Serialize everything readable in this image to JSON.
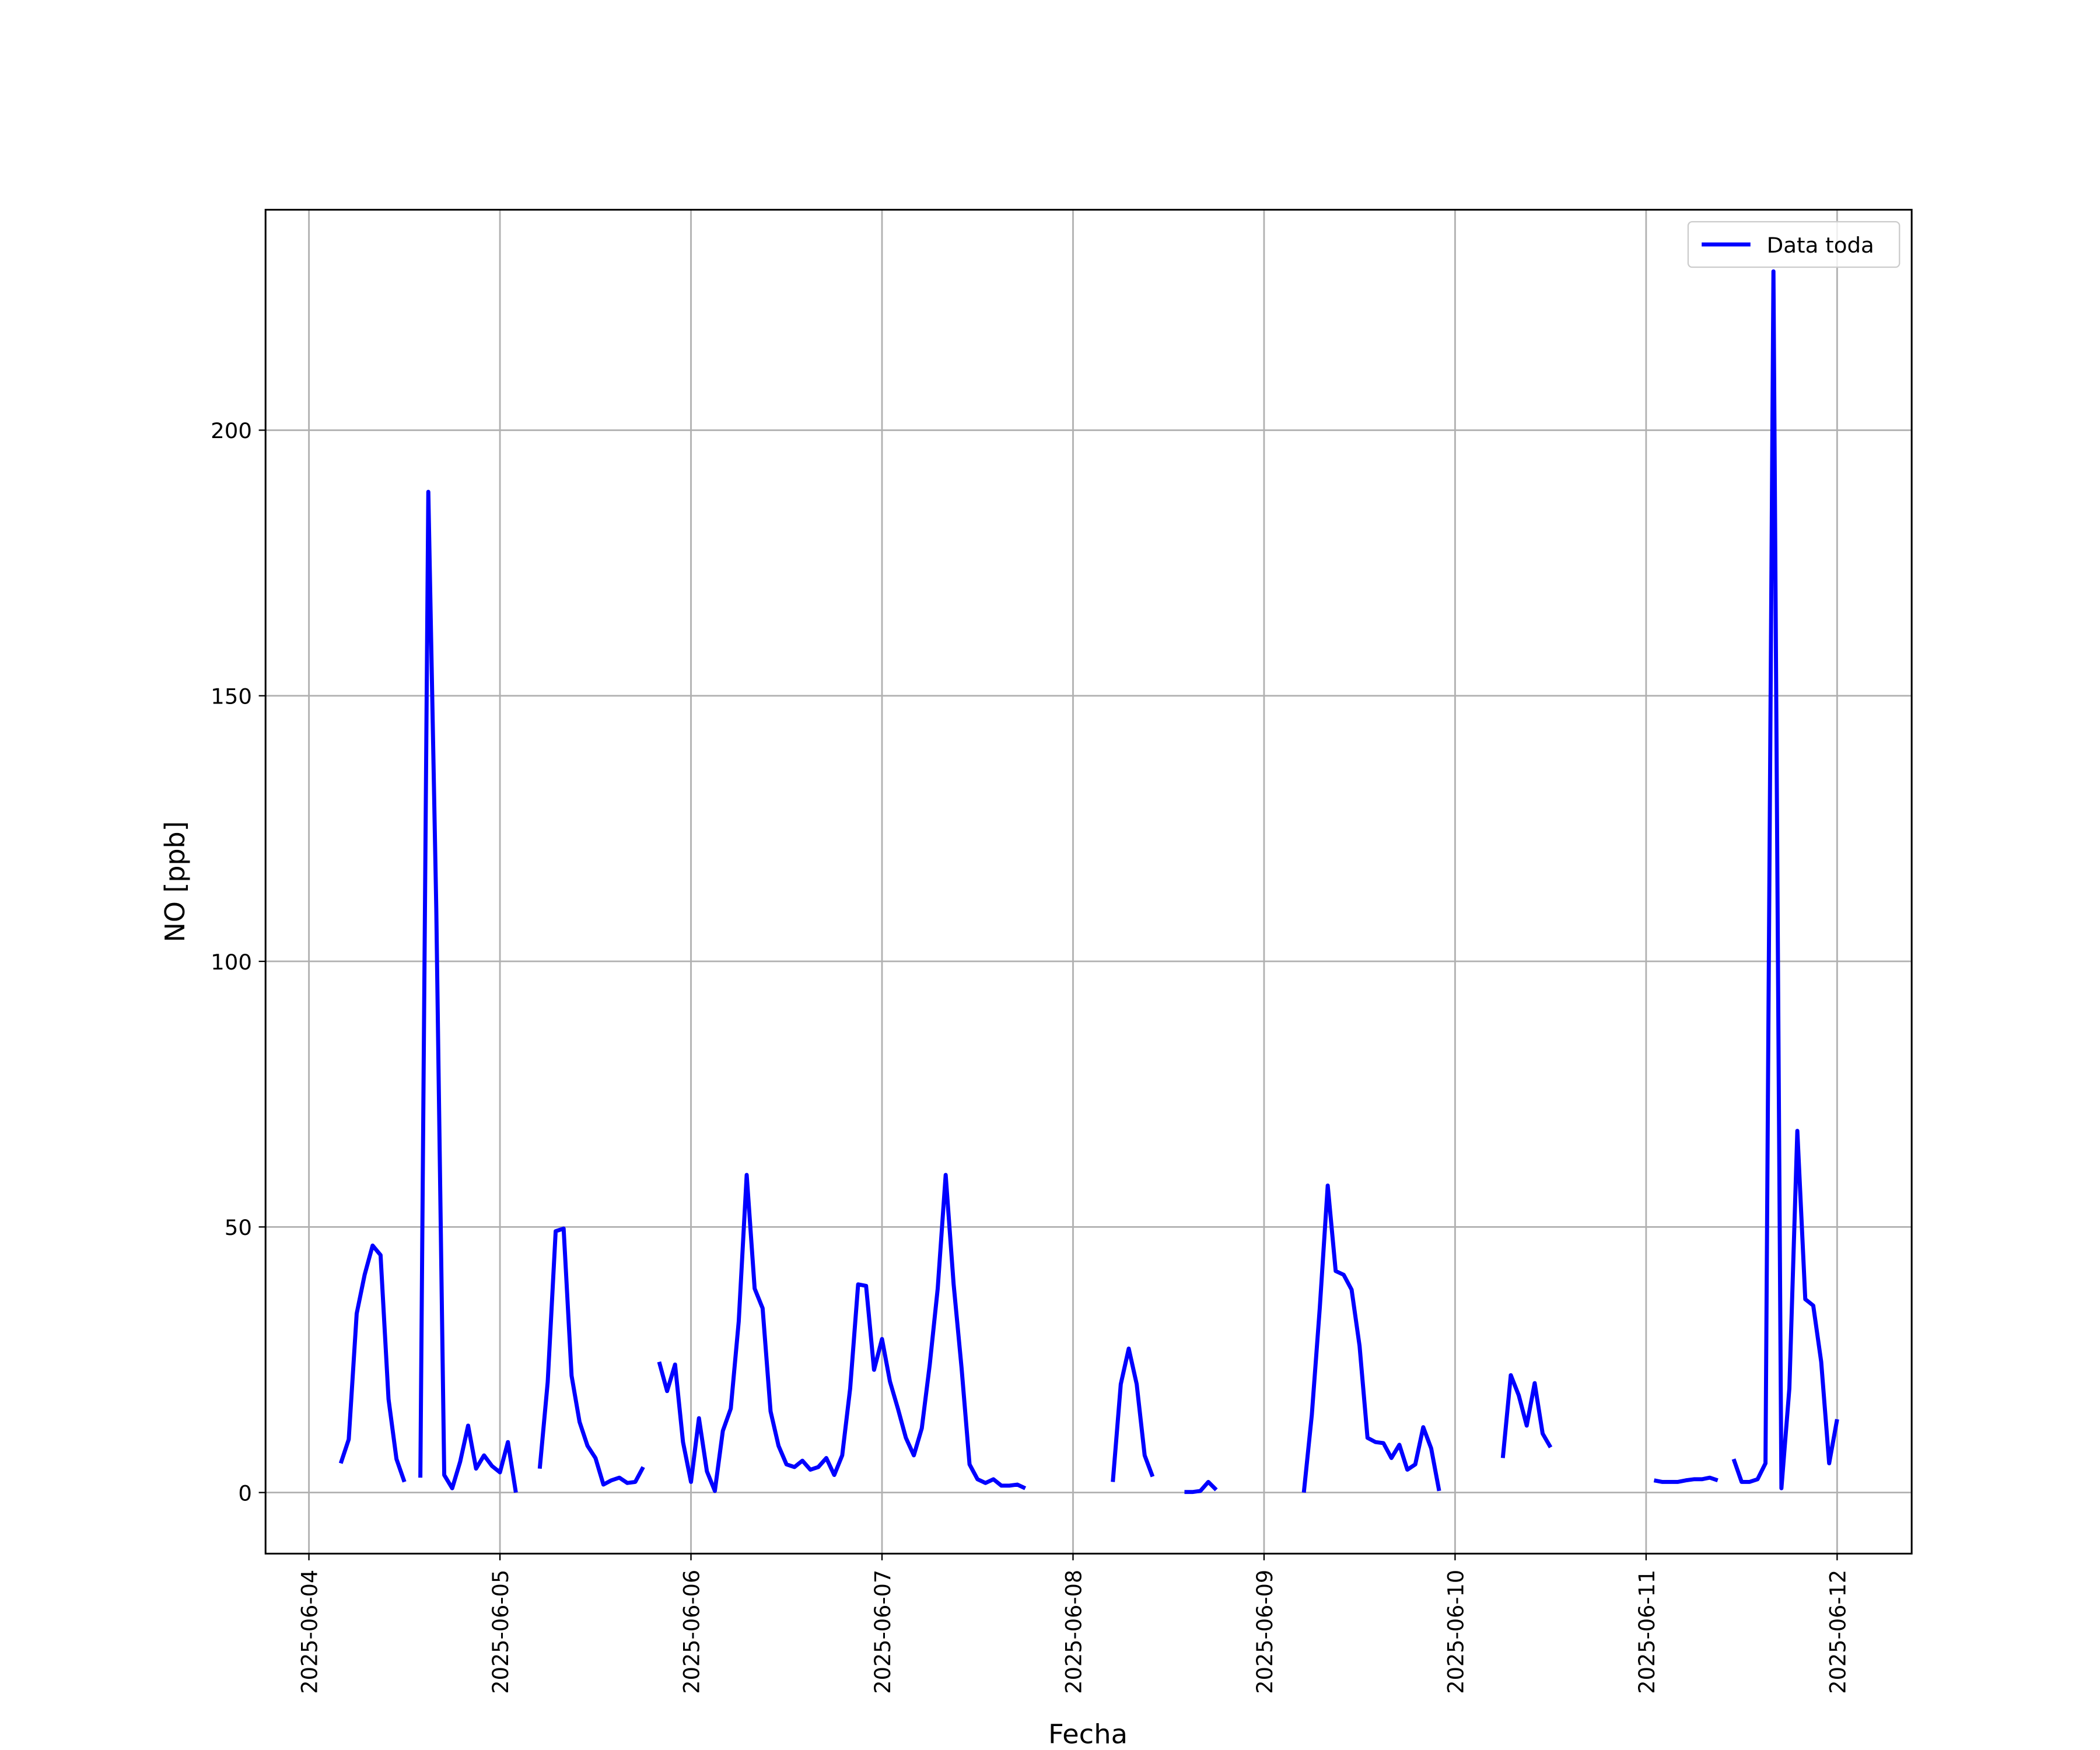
{
  "chart_data": {
    "type": "line",
    "xlabel": "Fecha",
    "ylabel": "NO [ppb]",
    "x": [
      "2025-06-04 04:00",
      "2025-06-04 05:00",
      "2025-06-04 06:00",
      "2025-06-04 07:00",
      "2025-06-04 08:00",
      "2025-06-04 09:00",
      "2025-06-04 10:00",
      "2025-06-04 11:00",
      "2025-06-04 12:00",
      "2025-06-04 13:00",
      "2025-06-04 14:00",
      "2025-06-04 15:00",
      "2025-06-04 16:00",
      "2025-06-04 17:00",
      "2025-06-04 18:00",
      "2025-06-04 19:00",
      "2025-06-04 20:00",
      "2025-06-04 21:00",
      "2025-06-04 22:00",
      "2025-06-04 23:00",
      "2025-06-05 00:00",
      "2025-06-05 01:00",
      "2025-06-05 02:00",
      "2025-06-05 03:00",
      "2025-06-05 05:00",
      "2025-06-05 06:00",
      "2025-06-05 07:00",
      "2025-06-05 08:00",
      "2025-06-05 09:00",
      "2025-06-05 10:00",
      "2025-06-05 11:00",
      "2025-06-05 12:00",
      "2025-06-05 13:00",
      "2025-06-05 14:00",
      "2025-06-05 15:00",
      "2025-06-05 16:00",
      "2025-06-05 17:00",
      "2025-06-05 18:00",
      "2025-06-05 19:00",
      "2025-06-05 20:00",
      "2025-06-05 21:00",
      "2025-06-05 22:00",
      "2025-06-05 23:00",
      "2025-06-06 00:00",
      "2025-06-06 01:00",
      "2025-06-06 02:00",
      "2025-06-06 03:00",
      "2025-06-06 04:00",
      "2025-06-06 05:00",
      "2025-06-06 06:00",
      "2025-06-06 07:00",
      "2025-06-06 08:00",
      "2025-06-06 09:00",
      "2025-06-06 10:00",
      "2025-06-06 11:00",
      "2025-06-06 12:00",
      "2025-06-06 13:00",
      "2025-06-06 14:00",
      "2025-06-06 15:00",
      "2025-06-06 16:00",
      "2025-06-06 17:00",
      "2025-06-06 18:00",
      "2025-06-06 19:00",
      "2025-06-06 20:00",
      "2025-06-06 21:00",
      "2025-06-06 22:00",
      "2025-06-06 23:00",
      "2025-06-07 00:00",
      "2025-06-07 01:00",
      "2025-06-07 02:00",
      "2025-06-07 03:00",
      "2025-06-07 04:00",
      "2025-06-07 05:00",
      "2025-06-07 06:00",
      "2025-06-07 07:00",
      "2025-06-07 08:00",
      "2025-06-07 09:00",
      "2025-06-07 10:00",
      "2025-06-07 11:00",
      "2025-06-07 12:00",
      "2025-06-07 13:00",
      "2025-06-07 14:00",
      "2025-06-07 15:00",
      "2025-06-07 16:00",
      "2025-06-07 17:00",
      "2025-06-07 18:00",
      "2025-06-07 19:00",
      "2025-06-08 05:00",
      "2025-06-08 06:00",
      "2025-06-08 07:00",
      "2025-06-08 08:00",
      "2025-06-08 09:00",
      "2025-06-08 10:00",
      "2025-06-08 11:00",
      "2025-06-08 14:00",
      "2025-06-08 15:00",
      "2025-06-08 16:00",
      "2025-06-08 17:00",
      "2025-06-08 18:00",
      "2025-06-08 19:00",
      "2025-06-09 05:00",
      "2025-06-09 06:00",
      "2025-06-09 07:00",
      "2025-06-09 08:00",
      "2025-06-09 09:00",
      "2025-06-09 10:00",
      "2025-06-09 11:00",
      "2025-06-09 12:00",
      "2025-06-09 13:00",
      "2025-06-09 14:00",
      "2025-06-09 15:00",
      "2025-06-09 16:00",
      "2025-06-09 17:00",
      "2025-06-09 18:00",
      "2025-06-09 19:00",
      "2025-06-09 20:00",
      "2025-06-09 21:00",
      "2025-06-09 22:00",
      "2025-06-09 23:00",
      "2025-06-10 06:00",
      "2025-06-10 07:00",
      "2025-06-10 08:00",
      "2025-06-10 09:00",
      "2025-06-10 10:00",
      "2025-06-10 11:00",
      "2025-06-10 12:00",
      "2025-06-10 13:00",
      "2025-06-11 01:00",
      "2025-06-11 02:00",
      "2025-06-11 03:00",
      "2025-06-11 04:00",
      "2025-06-11 05:00",
      "2025-06-11 06:00",
      "2025-06-11 07:00",
      "2025-06-11 08:00",
      "2025-06-11 09:00",
      "2025-06-11 10:00",
      "2025-06-11 11:00",
      "2025-06-11 12:00",
      "2025-06-11 13:00",
      "2025-06-11 14:00",
      "2025-06-11 15:00",
      "2025-06-11 16:00",
      "2025-06-11 17:00",
      "2025-06-11 18:00",
      "2025-06-11 19:00",
      "2025-06-11 20:00",
      "2025-06-11 21:00",
      "2025-06-11 22:00",
      "2025-06-11 23:00",
      "2025-06-12 00:00"
    ],
    "series": [
      {
        "name": "Data toda",
        "color": "#0000ff",
        "values": [
          5.5,
          10,
          33.7,
          41,
          46.5,
          44.7,
          17.6,
          6.3,
          2,
          null,
          2.8,
          188.4,
          110,
          3.3,
          0.8,
          5.8,
          12.6,
          4.5,
          7,
          5,
          3.8,
          9.5,
          0,
          null,
          4.5,
          20.8,
          49.2,
          49.7,
          22,
          13.3,
          8.8,
          6.5,
          1.5,
          2.3,
          2.8,
          1.8,
          2,
          4.8,
          null,
          24.6,
          19.1,
          24.1,
          9.5,
          2,
          14,
          4,
          0.3,
          11.6,
          15.8,
          32.2,
          59.8,
          38.4,
          34.7,
          15.3,
          8.8,
          5.3,
          4.8,
          6,
          4.3,
          4.8,
          6.5,
          3.3,
          7,
          19.6,
          39.2,
          38.9,
          23.1,
          28.9,
          20.9,
          15.8,
          10.3,
          7,
          12.1,
          24.1,
          38.4,
          59.8,
          39.2,
          23.4,
          5.3,
          2.5,
          1.8,
          2.5,
          1.3,
          1.3,
          1.5,
          0.8,
          null,
          2,
          20.4,
          27.1,
          20.4,
          7,
          3,
          null,
          0.1,
          0.1,
          0.3,
          2,
          0.5,
          null,
          0,
          14.6,
          34.7,
          57.8,
          41.7,
          41,
          38.2,
          27.6,
          10.3,
          9.5,
          9.3,
          6.5,
          9,
          4.3,
          5.3,
          12.3,
          8.3,
          0.3,
          null,
          6.5,
          22.1,
          18.3,
          12.6,
          20.6,
          11.1,
          8.5,
          null,
          2.3,
          2,
          2,
          2,
          2.3,
          2.5,
          2.5,
          2.8,
          2.3,
          null,
          6.3,
          2,
          2,
          2.5,
          5.5,
          229.9,
          0.8,
          19.6,
          68.1,
          36.4,
          35.2,
          24.6,
          5.5,
          13.8
        ]
      }
    ],
    "xlim": [
      "2025-06-03 18:33",
      "2025-06-12 09:22"
    ],
    "xticks": [
      "2025-06-04",
      "2025-06-05",
      "2025-06-06",
      "2025-06-07",
      "2025-06-08",
      "2025-06-09",
      "2025-06-10",
      "2025-06-11",
      "2025-06-12"
    ],
    "ylim": [
      -11.5,
      241.5
    ],
    "yticks": [
      0,
      50,
      100,
      150,
      200
    ],
    "grid": true,
    "legend": "upper right"
  }
}
